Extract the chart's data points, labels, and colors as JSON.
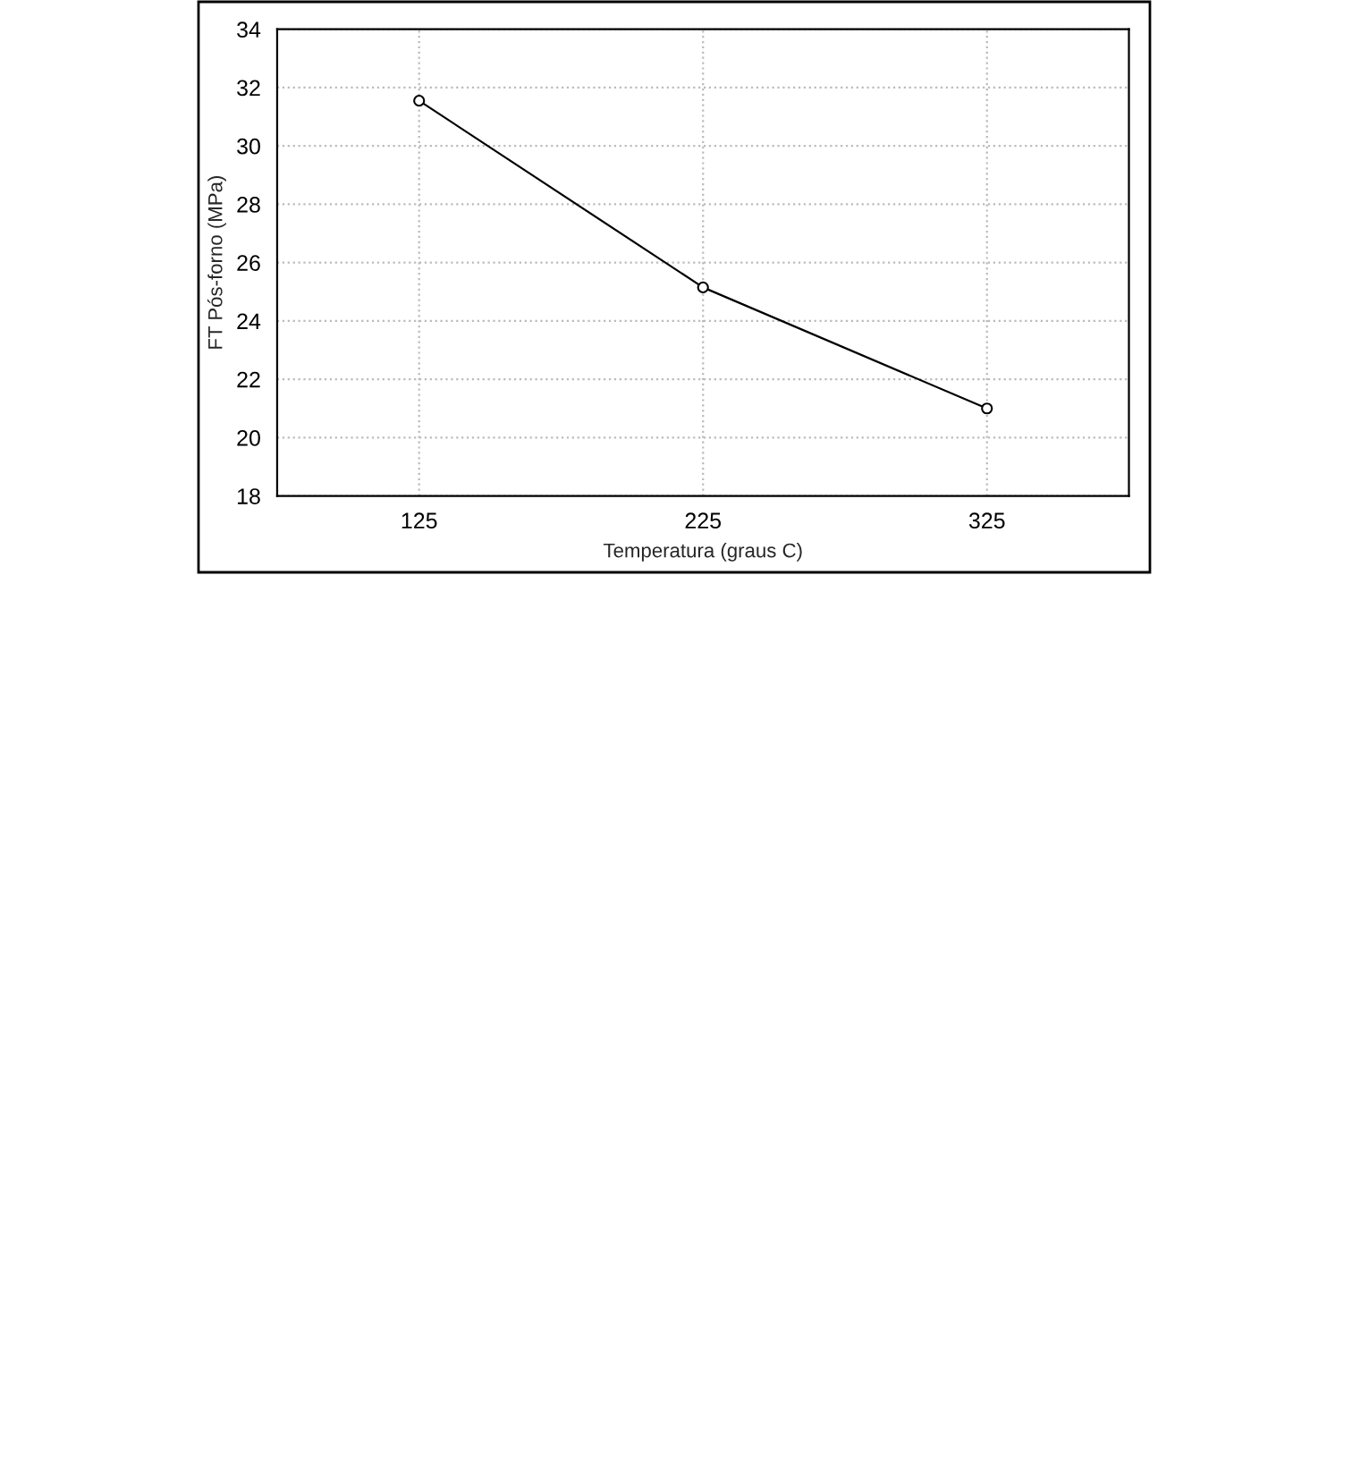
{
  "chart_data": {
    "type": "line",
    "xlabel": "Temperatura (graus C)",
    "ylabel": "FT Pós-forno (MPa)",
    "x": [
      125,
      225,
      325
    ],
    "series": [
      {
        "color": "#000000",
        "values": [
          31.55,
          25.15,
          21.0
        ]
      }
    ],
    "xlim": [
      75,
      375
    ],
    "xticks": [
      125,
      225,
      325
    ],
    "ylim": [
      18,
      34
    ],
    "yticks": [
      18,
      20,
      22,
      24,
      26,
      28,
      30,
      32,
      34
    ],
    "grid": true,
    "marker": "circle",
    "line_style": "solid",
    "legend": false
  }
}
